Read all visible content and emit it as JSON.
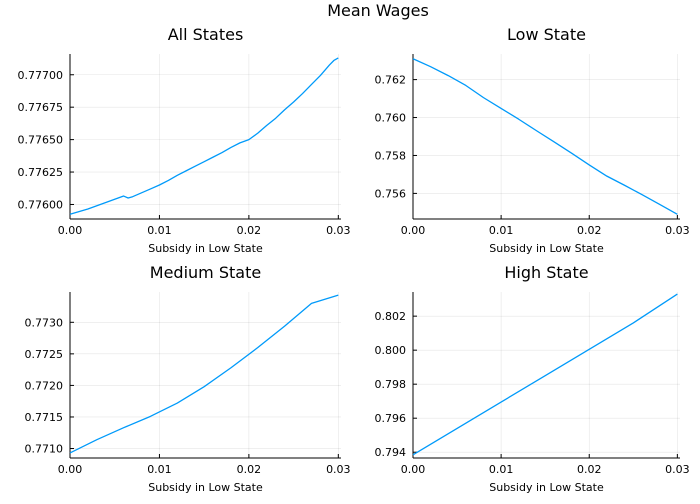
{
  "figure": {
    "title": "Mean Wages",
    "line_color": "#009AFA"
  },
  "chart_data": [
    {
      "type": "line",
      "title": "All States",
      "xlabel": "Subsidy in Low State",
      "ylabel": "",
      "xlim": [
        0.0,
        0.0303
      ],
      "ylim": [
        0.775888,
        0.77716
      ],
      "xticks": [
        0.0,
        0.01,
        0.02,
        0.03
      ],
      "xtick_labels": [
        "0.00",
        "0.01",
        "0.02",
        "0.03"
      ],
      "yticks": [
        0.776,
        0.77625,
        0.7765,
        0.77675,
        0.777
      ],
      "ytick_labels": [
        "0.77600",
        "0.77625",
        "0.77650",
        "0.77675",
        "0.77700"
      ],
      "grid": true,
      "series": [
        {
          "x": [
            0.0,
            0.001,
            0.002,
            0.003,
            0.004,
            0.005,
            0.006,
            0.0065,
            0.007,
            0.008,
            0.009,
            0.01,
            0.011,
            0.012,
            0.013,
            0.014,
            0.015,
            0.016,
            0.017,
            0.018,
            0.019,
            0.02,
            0.021,
            0.022,
            0.023,
            0.024,
            0.025,
            0.026,
            0.027,
            0.028,
            0.029,
            0.0295,
            0.03
          ],
          "y": [
            0.775925,
            0.775945,
            0.775965,
            0.77599,
            0.776015,
            0.77604,
            0.776065,
            0.77605,
            0.77606,
            0.77609,
            0.77612,
            0.77615,
            0.776185,
            0.776225,
            0.77626,
            0.776295,
            0.77633,
            0.776365,
            0.7764,
            0.77644,
            0.776475,
            0.7765,
            0.77655,
            0.77661,
            0.776665,
            0.77673,
            0.77679,
            0.776855,
            0.776925,
            0.776995,
            0.777075,
            0.77711,
            0.77713
          ]
        }
      ]
    },
    {
      "type": "line",
      "title": "Low State",
      "xlabel": "Subsidy in Low State",
      "ylabel": "",
      "xlim": [
        0.0,
        0.0303
      ],
      "ylim": [
        0.75465,
        0.76335
      ],
      "xticks": [
        0.0,
        0.01,
        0.02,
        0.03
      ],
      "xtick_labels": [
        "0.00",
        "0.01",
        "0.02",
        "0.03"
      ],
      "yticks": [
        0.756,
        0.758,
        0.76,
        0.762
      ],
      "ytick_labels": [
        "0.756",
        "0.758",
        "0.760",
        "0.762"
      ],
      "grid": true,
      "series": [
        {
          "x": [
            0.0,
            0.002,
            0.004,
            0.006,
            0.008,
            0.01,
            0.012,
            0.014,
            0.016,
            0.018,
            0.02,
            0.022,
            0.024,
            0.026,
            0.028,
            0.03
          ],
          "y": [
            0.7631,
            0.76268,
            0.76221,
            0.76169,
            0.76105,
            0.76048,
            0.75991,
            0.75931,
            0.75872,
            0.75812,
            0.7575,
            0.75691,
            0.75643,
            0.75593,
            0.75542,
            0.7549
          ]
        }
      ]
    },
    {
      "type": "line",
      "title": "Medium State",
      "xlabel": "Subsidy in Low State",
      "ylabel": "",
      "xlim": [
        0.0,
        0.0303
      ],
      "ylim": [
        0.77085,
        0.77348
      ],
      "xticks": [
        0.0,
        0.01,
        0.02,
        0.03
      ],
      "xtick_labels": [
        "0.00",
        "0.01",
        "0.02",
        "0.03"
      ],
      "yticks": [
        0.771,
        0.7715,
        0.772,
        0.7725,
        0.773
      ],
      "ytick_labels": [
        "0.7710",
        "0.7715",
        "0.7720",
        "0.7725",
        "0.7730"
      ],
      "grid": true,
      "series": [
        {
          "x": [
            0.0,
            0.003,
            0.006,
            0.009,
            0.012,
            0.015,
            0.018,
            0.021,
            0.024,
            0.027,
            0.03
          ],
          "y": [
            0.77093,
            0.77114,
            0.77133,
            0.77151,
            0.77172,
            0.77198,
            0.77228,
            0.7726,
            0.77294,
            0.7733,
            0.77343
          ]
        }
      ]
    },
    {
      "type": "line",
      "title": "High State",
      "xlabel": "Subsidy in Low State",
      "ylabel": "",
      "xlim": [
        0.0,
        0.0303
      ],
      "ylim": [
        0.79366,
        0.80342
      ],
      "xticks": [
        0.0,
        0.01,
        0.02,
        0.03
      ],
      "xtick_labels": [
        "0.00",
        "0.01",
        "0.02",
        "0.03"
      ],
      "yticks": [
        0.794,
        0.796,
        0.798,
        0.8,
        0.802
      ],
      "ytick_labels": [
        "0.794",
        "0.796",
        "0.798",
        "0.800",
        "0.802"
      ],
      "grid": true,
      "series": [
        {
          "x": [
            0.0,
            0.005,
            0.01,
            0.015,
            0.02,
            0.025,
            0.03
          ],
          "y": [
            0.79385,
            0.7954,
            0.79695,
            0.7985,
            0.80005,
            0.8016,
            0.8033
          ]
        }
      ]
    }
  ]
}
